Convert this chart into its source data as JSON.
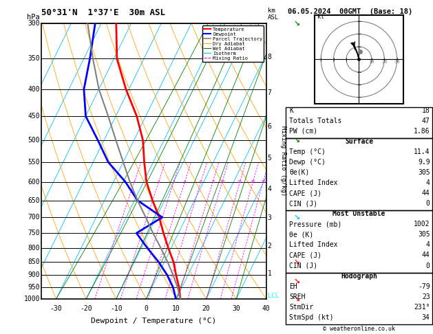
{
  "title_left": "50°31'N  1°37'E  30m ASL",
  "title_right": "06.05.2024  00GMT  (Base: 18)",
  "xlabel": "Dewpoint / Temperature (°C)",
  "pressure_levels": [
    300,
    350,
    400,
    450,
    500,
    550,
    600,
    650,
    700,
    750,
    800,
    850,
    900,
    950,
    1000
  ],
  "temp_xlim": [
    -35,
    40
  ],
  "skew_factor": 45,
  "km_ticks": [
    1,
    2,
    3,
    4,
    5,
    6,
    7,
    8
  ],
  "km_pressures": [
    895,
    793,
    701,
    618,
    541,
    470,
    406,
    348
  ],
  "mixing_ratio_values": [
    1,
    2,
    3,
    4,
    6,
    8,
    10,
    15,
    20,
    25
  ],
  "temp_profile_p": [
    1000,
    950,
    900,
    850,
    800,
    750,
    700,
    650,
    600,
    550,
    500,
    450,
    400,
    350,
    300
  ],
  "temp_profile_t": [
    11.4,
    9.0,
    6.0,
    3.0,
    -1.0,
    -5.0,
    -9.0,
    -14.0,
    -19.0,
    -23.0,
    -27.0,
    -33.0,
    -41.0,
    -49.0,
    -55.0
  ],
  "dewp_profile_p": [
    1000,
    950,
    900,
    850,
    800,
    750,
    700,
    650,
    600,
    550,
    500,
    450,
    400,
    350,
    300
  ],
  "dewp_profile_t": [
    9.9,
    7.0,
    3.0,
    -2.0,
    -8.0,
    -14.0,
    -8.0,
    -19.0,
    -26.0,
    -35.0,
    -42.0,
    -50.0,
    -55.0,
    -58.0,
    -62.0
  ],
  "parcel_profile_p": [
    1000,
    950,
    900,
    850,
    800,
    750,
    700,
    650,
    600,
    550,
    500,
    450,
    400,
    350,
    300
  ],
  "parcel_profile_t": [
    11.4,
    8.5,
    5.0,
    1.0,
    -3.5,
    -8.5,
    -13.5,
    -19.0,
    -24.5,
    -30.0,
    -36.0,
    -42.5,
    -50.0,
    -57.0,
    -64.5
  ],
  "hodo_u": [
    0,
    -1,
    -3,
    -5,
    -4,
    -3
  ],
  "hodo_v": [
    0,
    4,
    9,
    13,
    11,
    8
  ],
  "hodo_speed_circles": [
    10,
    20,
    30
  ],
  "color_temp": "#ff0000",
  "color_dewp": "#0000ff",
  "color_parcel": "#808080",
  "color_dry_adiabat": "#ffa500",
  "color_wet_adiabat": "#008000",
  "color_isotherm": "#00bfff",
  "color_mixing": "#ff00ff",
  "wind_barb_pressures": [
    1000,
    925,
    850,
    700,
    500,
    300
  ],
  "wind_barb_colors": [
    "#ff0000",
    "#ff0000",
    "#ff0000",
    "#00bfff",
    "#008000",
    "#008000"
  ],
  "x_tick_vals": [
    -30,
    -20,
    -10,
    0,
    10,
    20,
    30,
    40
  ],
  "table_sections": [
    {
      "header": null,
      "rows": [
        [
          "K",
          "18"
        ],
        [
          "Totals Totals",
          "47"
        ],
        [
          "PW (cm)",
          "1.86"
        ]
      ]
    },
    {
      "header": "Surface",
      "rows": [
        [
          "Temp (°C)",
          "11.4"
        ],
        [
          "Dewp (°C)",
          "9.9"
        ],
        [
          "θe(K)",
          "305"
        ],
        [
          "Lifted Index",
          "4"
        ],
        [
          "CAPE (J)",
          "44"
        ],
        [
          "CIN (J)",
          "0"
        ]
      ]
    },
    {
      "header": "Most Unstable",
      "rows": [
        [
          "Pressure (mb)",
          "1002"
        ],
        [
          "θe (K)",
          "305"
        ],
        [
          "Lifted Index",
          "4"
        ],
        [
          "CAPE (J)",
          "44"
        ],
        [
          "CIN (J)",
          "0"
        ]
      ]
    },
    {
      "header": "Hodograph",
      "rows": [
        [
          "EH",
          "-79"
        ],
        [
          "SREH",
          "23"
        ],
        [
          "StmDir",
          "231°"
        ],
        [
          "StmSpd (kt)",
          "34"
        ]
      ]
    }
  ],
  "copyright": "© weatheronline.co.uk"
}
